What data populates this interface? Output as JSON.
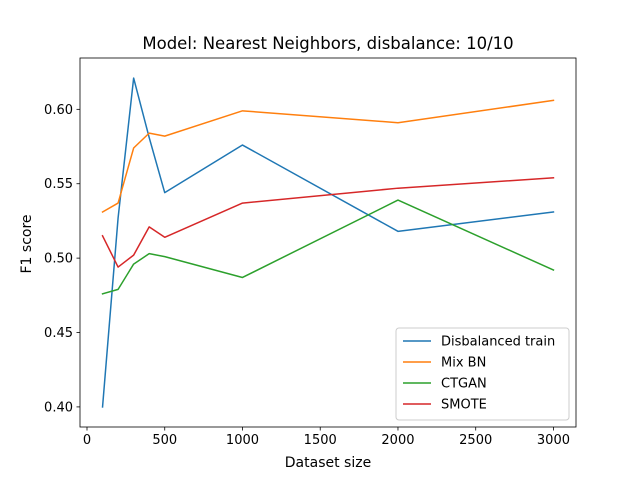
{
  "chart_data": {
    "type": "line",
    "title": "Model: Nearest Neighbors, disbalance: 10/10",
    "xlabel": "Dataset size",
    "ylabel": "F1 score",
    "xlim": [
      -45,
      3145
    ],
    "ylim": [
      0.3865,
      0.6345
    ],
    "xticks": [
      0,
      500,
      1000,
      1500,
      2000,
      2500,
      3000
    ],
    "xtick_labels": [
      "0",
      "500",
      "1000",
      "1500",
      "2000",
      "2500",
      "3000"
    ],
    "yticks": [
      0.4,
      0.45,
      0.5,
      0.55,
      0.6
    ],
    "ytick_labels": [
      "0.40",
      "0.45",
      "0.50",
      "0.55",
      "0.60"
    ],
    "grid": false,
    "legend_position": "lower-right",
    "x": [
      100,
      200,
      300,
      400,
      500,
      1000,
      2000,
      3000
    ],
    "series": [
      {
        "name": "Disbalanced train",
        "color": "#1f77b4",
        "values": [
          0.4,
          0.527,
          0.621,
          0.581,
          0.544,
          0.576,
          0.518,
          0.531
        ]
      },
      {
        "name": "Mix BN",
        "color": "#ff7f0e",
        "values": [
          0.531,
          0.537,
          0.574,
          0.584,
          0.582,
          0.599,
          0.591,
          0.606
        ]
      },
      {
        "name": "CTGAN",
        "color": "#2ca02c",
        "values": [
          0.476,
          0.479,
          0.496,
          0.503,
          0.501,
          0.487,
          0.539,
          0.492
        ]
      },
      {
        "name": "SMOTE",
        "color": "#d62728",
        "values": [
          0.515,
          0.494,
          0.502,
          0.521,
          0.514,
          0.537,
          0.547,
          0.554
        ]
      }
    ]
  }
}
